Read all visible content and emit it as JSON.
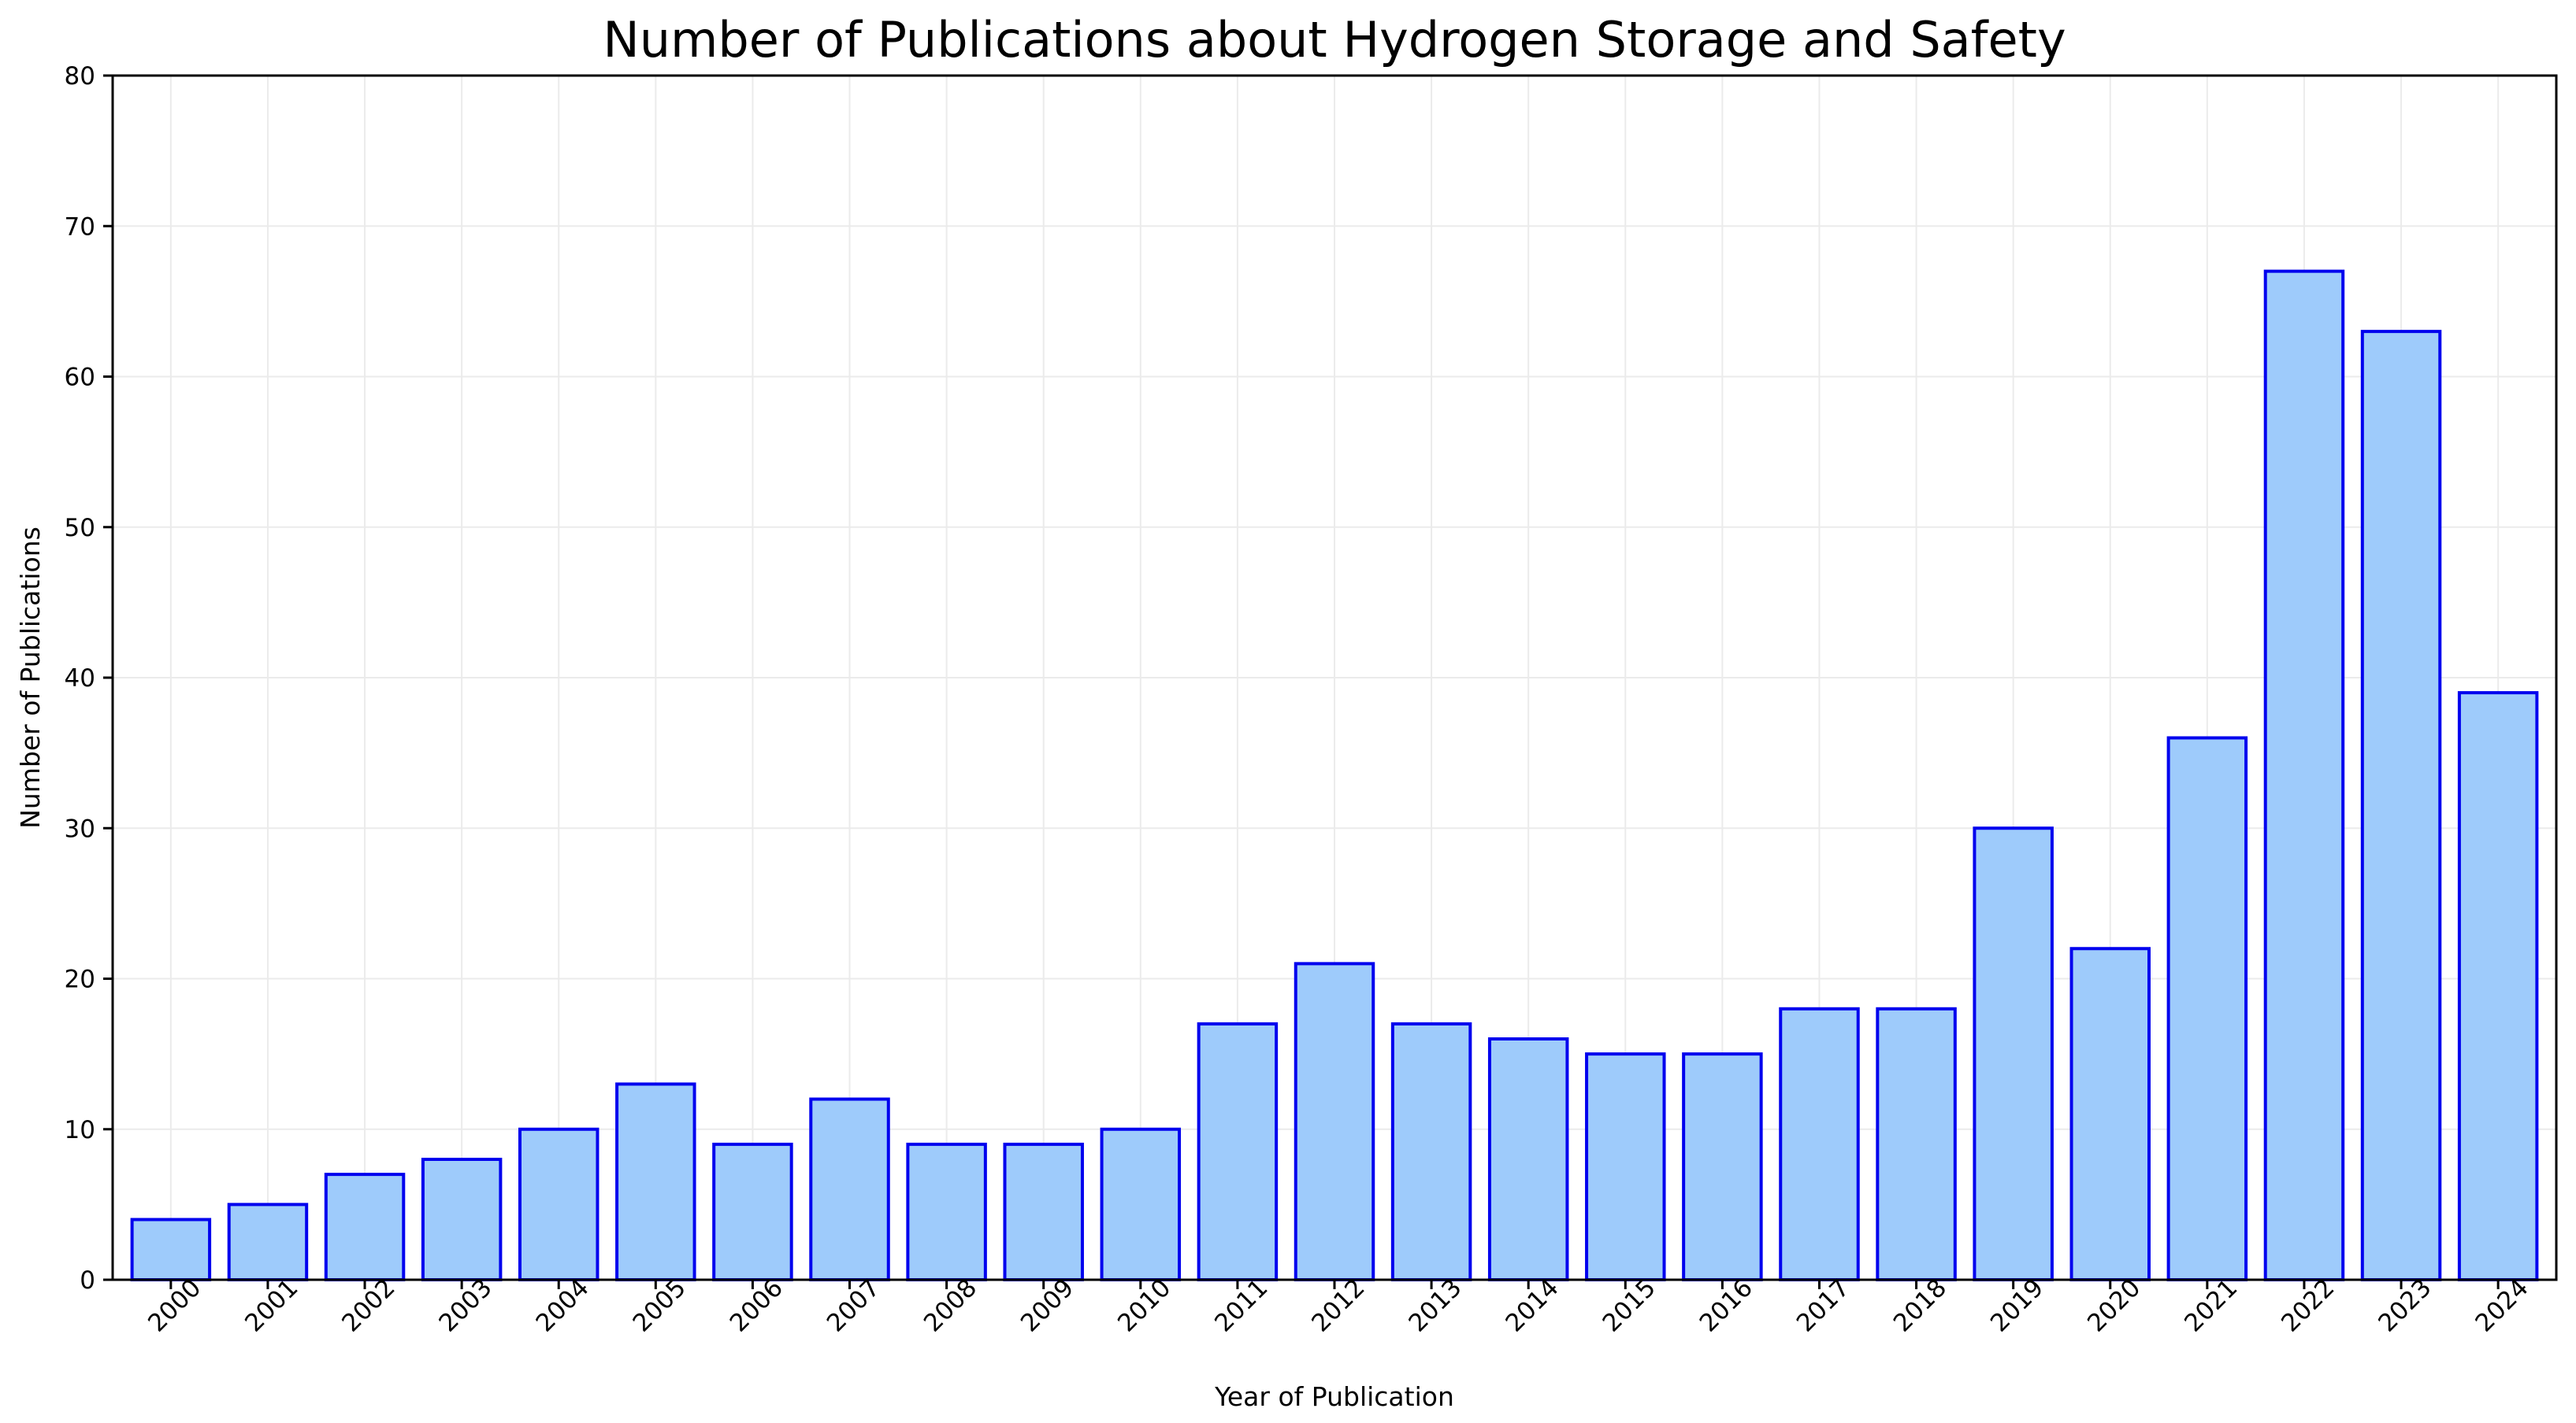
{
  "chart_data": {
    "type": "bar",
    "title": "Number of Publications about Hydrogen Storage and Safety",
    "xlabel": "Year of Publication",
    "ylabel": "Number of Publications",
    "categories": [
      "2000",
      "2001",
      "2002",
      "2003",
      "2004",
      "2005",
      "2006",
      "2007",
      "2008",
      "2009",
      "2010",
      "2011",
      "2012",
      "2013",
      "2014",
      "2015",
      "2016",
      "2017",
      "2018",
      "2019",
      "2020",
      "2021",
      "2022",
      "2023",
      "2024"
    ],
    "values": [
      4,
      5,
      7,
      8,
      10,
      13,
      9,
      12,
      9,
      9,
      10,
      17,
      21,
      17,
      16,
      15,
      15,
      18,
      18,
      30,
      22,
      36,
      67,
      63,
      39
    ],
    "ylim": [
      0,
      80
    ],
    "yticks": [
      0,
      10,
      20,
      30,
      40,
      50,
      60,
      70,
      80
    ],
    "grid": true,
    "colors": {
      "bar_fill": "#9ecbfb",
      "bar_edge": "#0000ee"
    }
  }
}
